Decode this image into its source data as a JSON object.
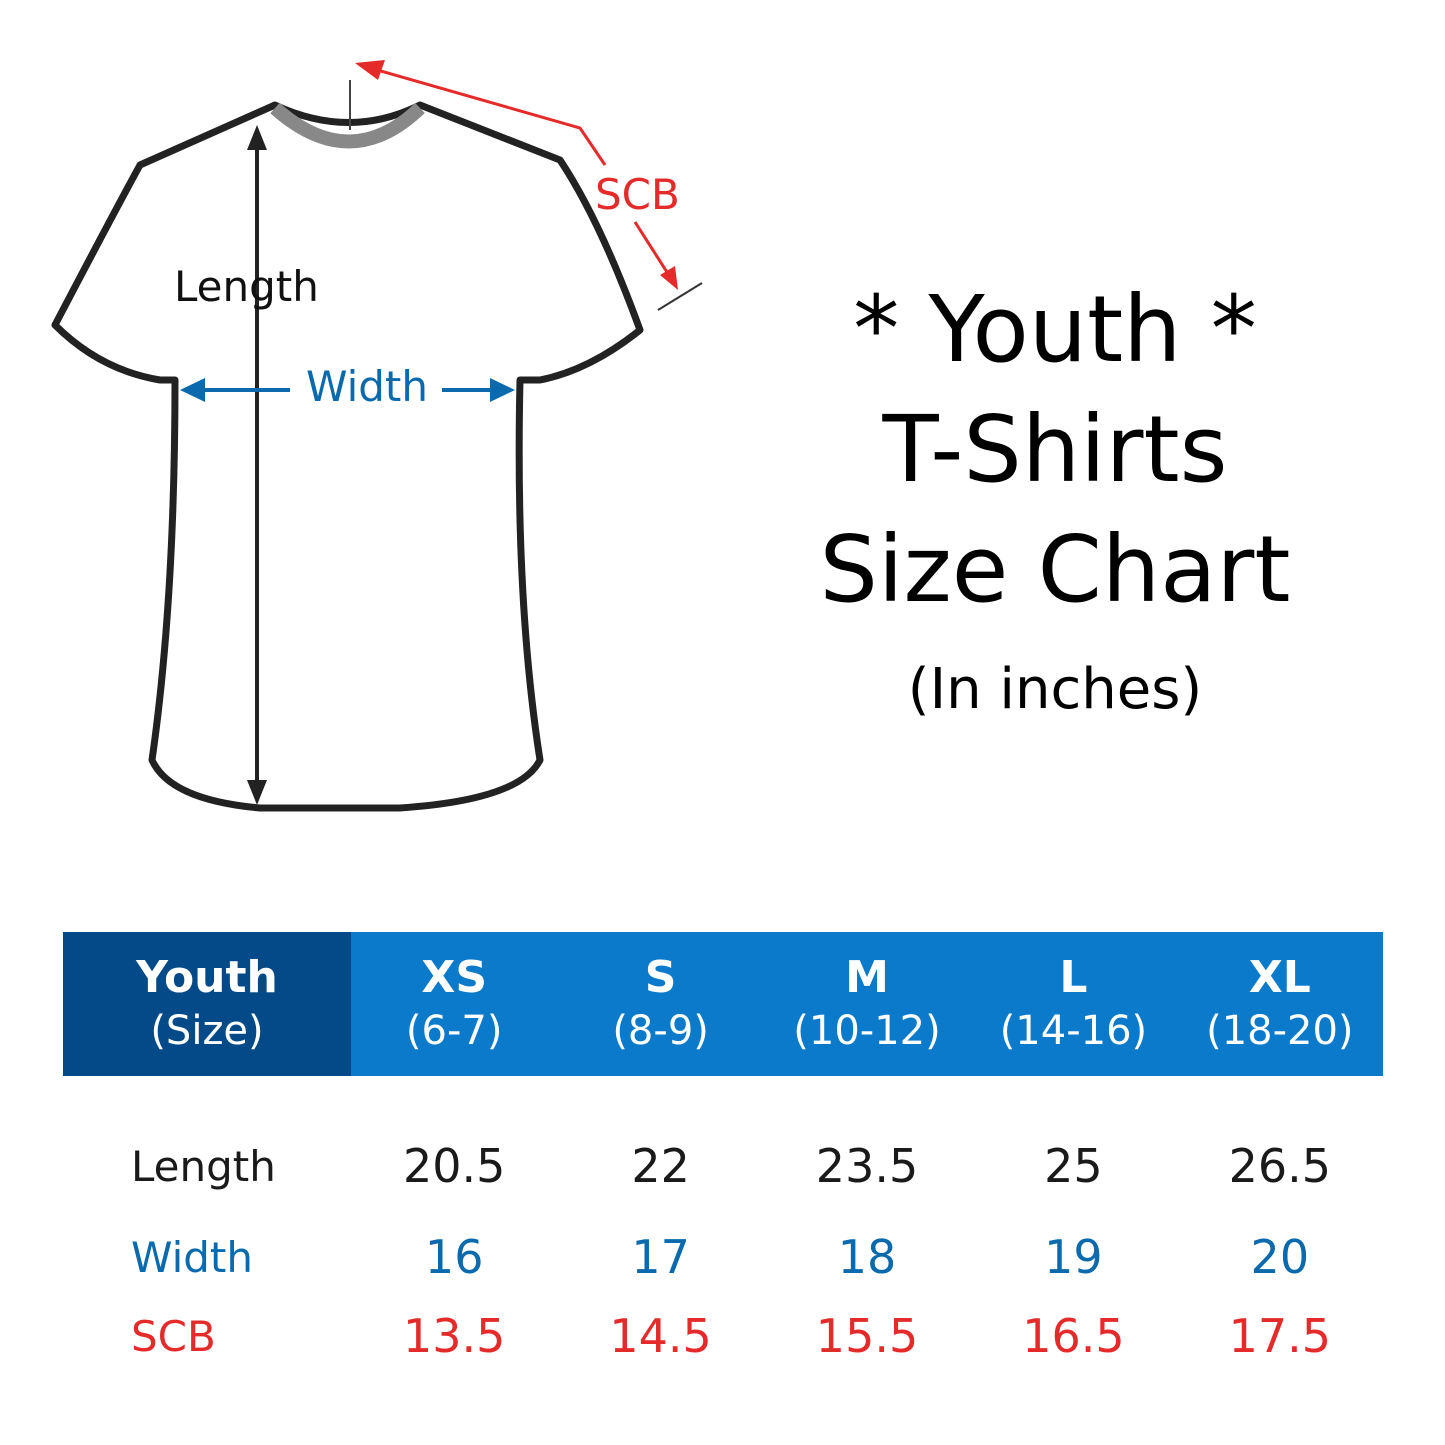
{
  "diagram": {
    "length_label": "Length",
    "width_label": "Width",
    "scb_label": "SCB"
  },
  "title": {
    "line1": "* Youth *",
    "line2": "T-Shirts",
    "line3": "Size Chart",
    "unit": "(In inches)"
  },
  "colors": {
    "header_dark": "#044a88",
    "header_blue": "#0b7acb",
    "width_blue": "#0a6aad",
    "scb_red": "#e52a2a"
  },
  "table": {
    "header": [
      {
        "a": "Youth",
        "b": "(Size)"
      },
      {
        "a": "XS",
        "b": "(6-7)"
      },
      {
        "a": "S",
        "b": "(8-9)"
      },
      {
        "a": "M",
        "b": "(10-12)"
      },
      {
        "a": "L",
        "b": "(14-16)"
      },
      {
        "a": "XL",
        "b": "(18-20)"
      }
    ],
    "rows": [
      {
        "label": "Length",
        "values": [
          "20.5",
          "22",
          "23.5",
          "25",
          "26.5"
        ]
      },
      {
        "label": "Width",
        "values": [
          "16",
          "17",
          "18",
          "19",
          "20"
        ]
      },
      {
        "label": "SCB",
        "values": [
          "13.5",
          "14.5",
          "15.5",
          "16.5",
          "17.5"
        ]
      }
    ]
  }
}
